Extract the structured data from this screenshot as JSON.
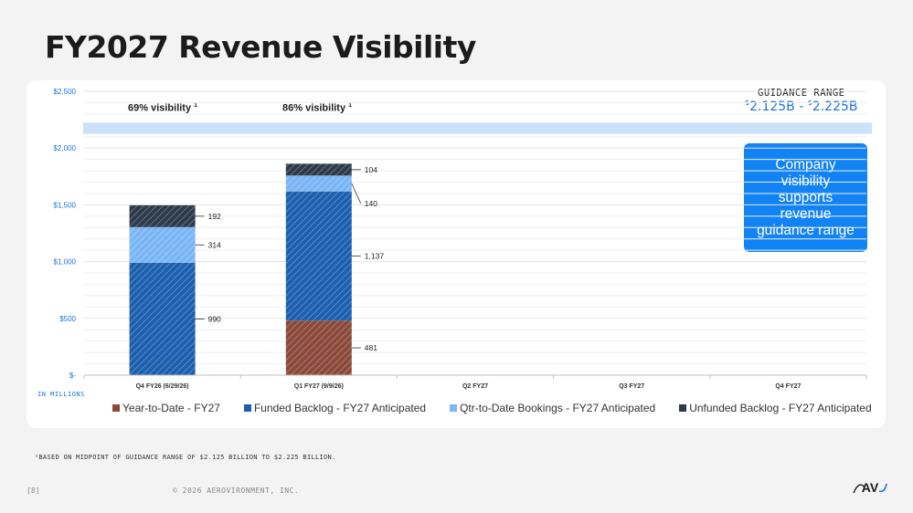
{
  "page": {
    "title": "FY2027 Revenue Visibility",
    "footnote": "¹BASED ON MIDPOINT OF GUIDANCE RANGE OF $2.125 BILLION TO $2.225 BILLION.",
    "page_number": "[8]",
    "copyright": "© 2026 AEROVIRONMENT, INC.",
    "logo_text": "AV"
  },
  "guidance": {
    "title": "GUIDANCE RANGE",
    "low_sup": "$",
    "low": "2.125B",
    "sep": " - ",
    "high_sup": "$",
    "high": "2.225B",
    "callout": "Company visibility supports revenue guidance range"
  },
  "visibility_labels": [
    {
      "text": "69% visibility",
      "sup": "1"
    },
    {
      "text": "86% visibility",
      "sup": "1"
    }
  ],
  "units_label": "IN MILLIONS",
  "colors": {
    "ytd": "#8a4a3a",
    "funded": "#1b5fae",
    "qtd": "#7ab6f5",
    "unfunded": "#2d3a4a",
    "band": "#cce2fb",
    "axis_label": "#1a73d8"
  },
  "chart_data": {
    "type": "bar",
    "stacked": true,
    "categories": [
      "Q4 FY26 (6/29/26)",
      "Q1 FY27 (9/9/26)",
      "Q2 FY27",
      "Q3 FY27",
      "Q4 FY27"
    ],
    "series": [
      {
        "name": "Year-to-Date - FY27",
        "values": [
          0,
          481,
          null,
          null,
          null
        ],
        "color": "#8a4a3a"
      },
      {
        "name": "Funded Backlog - FY27 Anticipated",
        "values": [
          990,
          1137,
          null,
          null,
          null
        ],
        "color": "#1b5fae"
      },
      {
        "name": "Qtr-to-Date Bookings - FY27 Anticipated",
        "values": [
          314,
          140,
          null,
          null,
          null
        ],
        "color": "#7ab6f5"
      },
      {
        "name": "Unfunded Backlog  - FY27 Anticipated",
        "values": [
          192,
          104,
          null,
          null,
          null
        ],
        "color": "#2d3a4a"
      }
    ],
    "data_labels": [
      [
        "",
        "990",
        "314",
        "192"
      ],
      [
        "481",
        "1,137",
        "140",
        "104"
      ]
    ],
    "yticks": [
      0,
      500,
      1000,
      1500,
      2000,
      2500
    ],
    "ytick_labels": [
      "$-",
      "$500",
      "$1,000",
      "$1,500",
      "$2,000",
      "$2,500"
    ],
    "ylim": [
      0,
      2500
    ],
    "guidance_band": [
      2125,
      2225
    ],
    "grid": true,
    "legend": "bottom"
  }
}
